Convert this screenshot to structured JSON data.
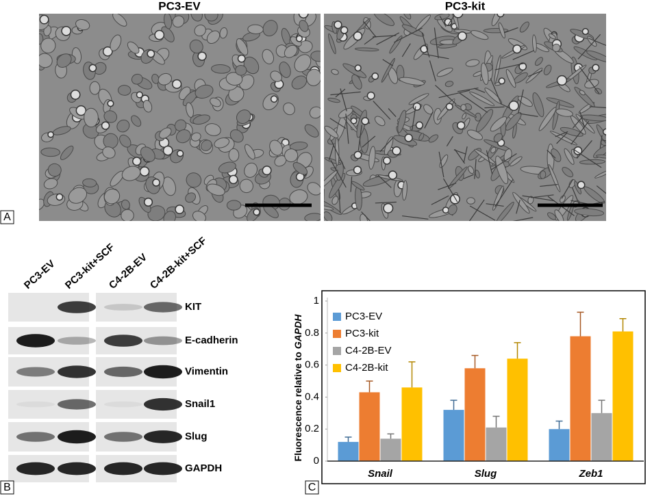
{
  "panel_a": {
    "label": "A",
    "images": [
      {
        "title": "PC3-EV"
      },
      {
        "title": "PC3-kit"
      }
    ]
  },
  "panel_b": {
    "label": "B",
    "lanes": [
      "PC3-EV",
      "PC3-kit+SCF",
      "C4-2B-EV",
      "C4-2B-kit+SCF"
    ],
    "proteins": [
      "KIT",
      "E-cadherin",
      "Vimentin",
      "Snail1",
      "Slug",
      "GAPDH"
    ]
  },
  "panel_c_label": "C",
  "chart_data": {
    "type": "bar",
    "ylabel": [
      "Fluorescence relative to",
      "GAPDH"
    ],
    "categories": [
      "Snail",
      "Slug",
      "Zeb1"
    ],
    "series": [
      {
        "name": "PC3-EV",
        "color": "#5b9bd5",
        "values": [
          0.12,
          0.32,
          0.2
        ],
        "errors": [
          0.03,
          0.06,
          0.05
        ]
      },
      {
        "name": "PC3-kit",
        "color": "#ed7d31",
        "values": [
          0.43,
          0.58,
          0.78
        ],
        "errors": [
          0.07,
          0.08,
          0.15
        ]
      },
      {
        "name": "C4-2B-EV",
        "color": "#a5a5a5",
        "values": [
          0.14,
          0.21,
          0.3
        ],
        "errors": [
          0.03,
          0.07,
          0.08
        ]
      },
      {
        "name": "C4-2B-kit",
        "color": "#ffc000",
        "values": [
          0.46,
          0.64,
          0.81
        ],
        "errors": [
          0.16,
          0.1,
          0.08
        ]
      }
    ],
    "ylim": [
      0,
      1
    ],
    "yticks": [
      0,
      0.2,
      0.4,
      0.6,
      0.8,
      1
    ],
    "grid": false,
    "legend": "top-left"
  }
}
